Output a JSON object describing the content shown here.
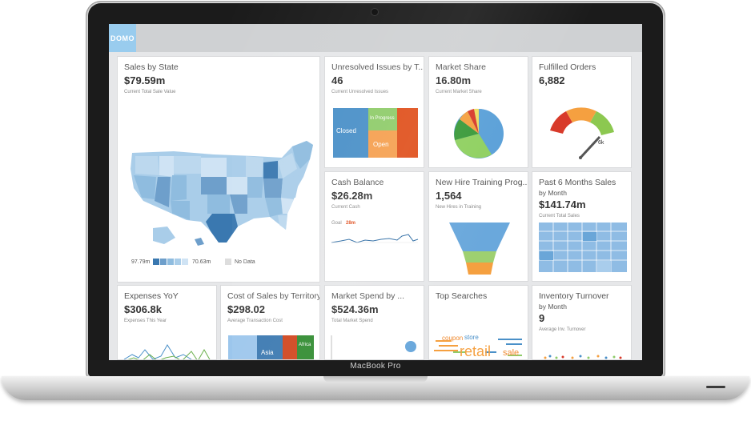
{
  "device": {
    "model_label": "MacBook Pro"
  },
  "app": {
    "logo": "DOMO"
  },
  "cards": {
    "sales_by_state": {
      "title": "Sales by State",
      "value": "$79.59m",
      "note": "Current Total Sale Value",
      "legend_max": "97.79m",
      "legend_min": "70.63m",
      "legend_na": "No Data"
    },
    "unresolved": {
      "title": "Unresolved Issues by T...",
      "value": "46",
      "note": "Current Unresolved Issues",
      "labels": {
        "closed": "Closed",
        "in_progress": "In Progress",
        "open": "Open"
      }
    },
    "market_share": {
      "title": "Market Share",
      "value": "16.80m",
      "note": "Current Market Share"
    },
    "fulfilled": {
      "title": "Fulfilled Orders",
      "value": "6,882",
      "gauge_label": "6k"
    },
    "cash": {
      "title": "Cash Balance",
      "value": "$26.28m",
      "note": "Current Cash",
      "goal_label": "Goal",
      "goal_value": "28m"
    },
    "hires": {
      "title": "New Hire Training Prog...",
      "value": "1,564",
      "note": "New Hires in Training"
    },
    "past_sales": {
      "title": "Past 6 Months Sales",
      "subtitle": "by Month",
      "value": "$141.74m",
      "note": "Current Total Sales"
    },
    "expenses": {
      "title": "Expenses YoY",
      "value": "$306.8k",
      "note": "Expenses This Year"
    },
    "cost_sales": {
      "title": "Cost of Sales by Territory",
      "value": "$298.02",
      "note": "Average Transaction Cost",
      "labels": {
        "asia": "Asia",
        "africa": "Africa"
      }
    },
    "market_spend": {
      "title": "Market Spend by ...",
      "value": "$524.36m",
      "note": "Total Market Spend"
    },
    "searches": {
      "title": "Top Searches",
      "words": {
        "coupon": "coupon",
        "store": "store",
        "retail": "retail",
        "sale": "sale"
      }
    },
    "inventory": {
      "title": "Inventory Turnover",
      "subtitle": "by Month",
      "value": "9",
      "note": "Average Inv. Turnover"
    }
  },
  "colors": {
    "closed": "#4a90c8",
    "in_progress": "#8fcc6a",
    "open": "#f5a050",
    "red_block": "#e0501c",
    "gauge_red": "#d83a2a",
    "gauge_orange": "#f5a040",
    "gauge_green": "#8cc850",
    "map_dark": "#3a78b0",
    "map_light": "#bcd8ee"
  }
}
